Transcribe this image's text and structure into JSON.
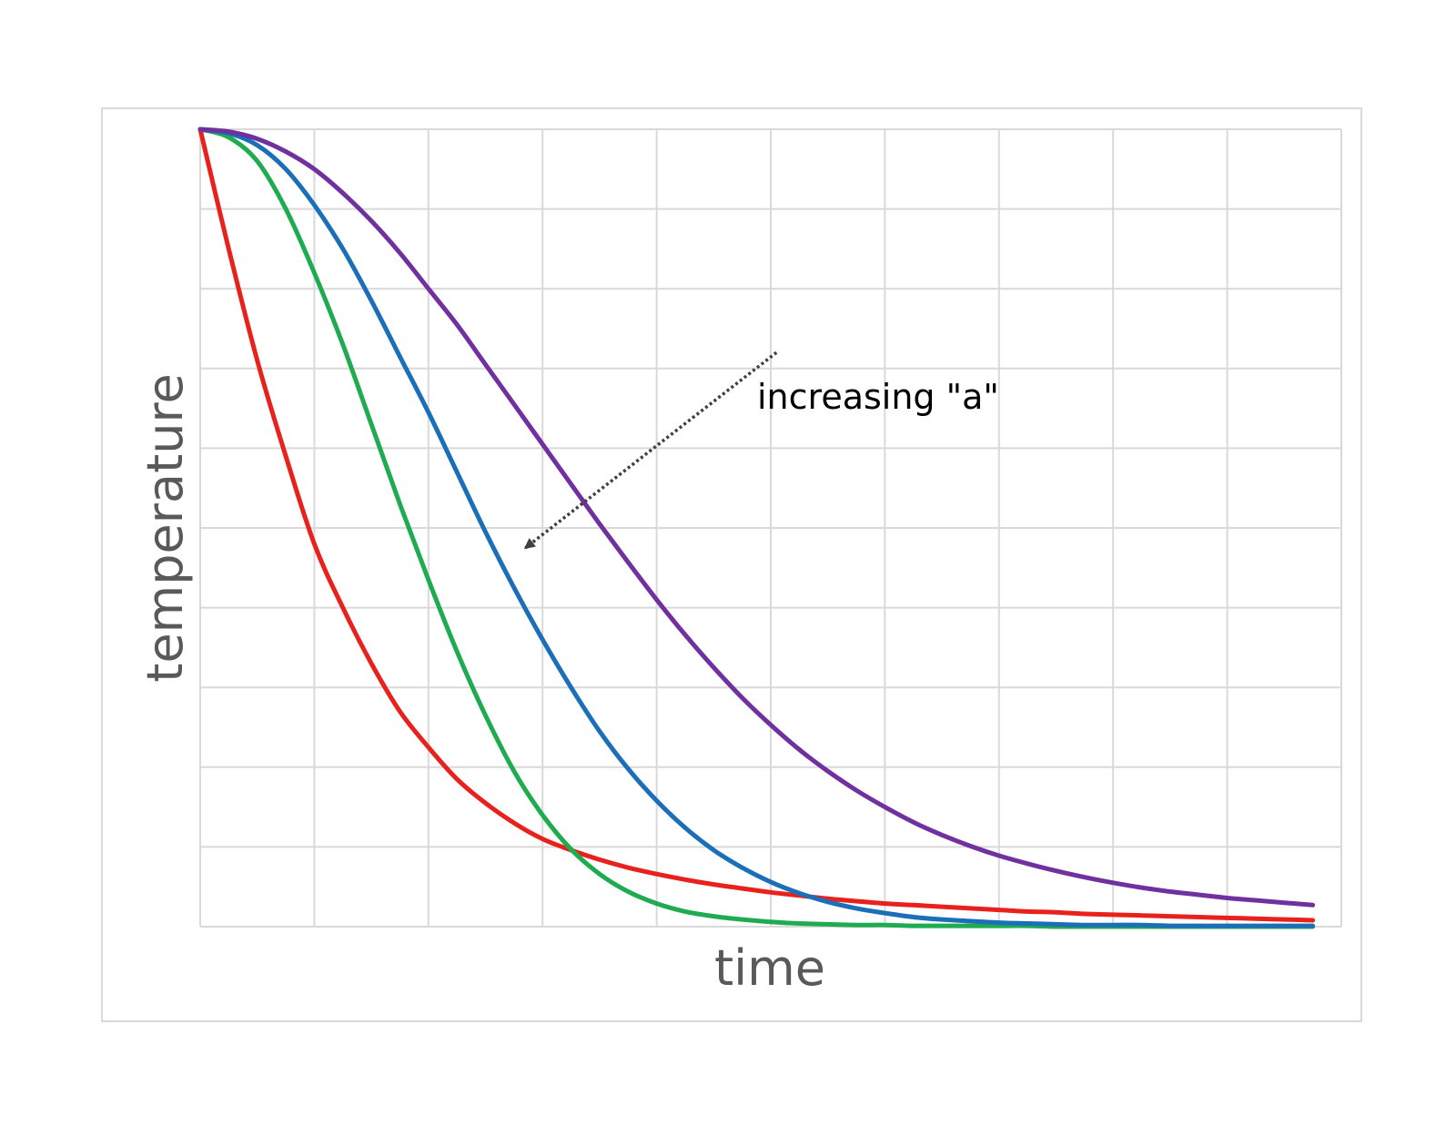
{
  "chart_data": {
    "type": "line",
    "title": "",
    "xlabel": "time",
    "ylabel": "temperature",
    "xlim": [
      0,
      10
    ],
    "ylim": [
      0,
      10
    ],
    "grid": true,
    "x_gridlines": 10,
    "y_gridlines": 10,
    "tick_labels_shown": false,
    "x": [
      0,
      0.25,
      0.5,
      0.75,
      1,
      1.25,
      1.5,
      1.75,
      2,
      2.25,
      2.5,
      2.75,
      3,
      3.25,
      3.5,
      3.75,
      4,
      4.25,
      4.5,
      4.75,
      5,
      5.25,
      5.5,
      5.75,
      6,
      6.25,
      6.5,
      6.75,
      7,
      7.25,
      7.5,
      7.75,
      8,
      8.25,
      8.5,
      8.75,
      9,
      9.25,
      9.5,
      9.75
    ],
    "series": [
      {
        "color": "#e8211d",
        "values": [
          10.0,
          8.5,
          7.1,
          5.9,
          4.8,
          4.0,
          3.3,
          2.7,
          2.25,
          1.85,
          1.55,
          1.3,
          1.1,
          0.96,
          0.84,
          0.74,
          0.66,
          0.59,
          0.53,
          0.48,
          0.43,
          0.39,
          0.35,
          0.32,
          0.29,
          0.27,
          0.25,
          0.23,
          0.21,
          0.19,
          0.18,
          0.16,
          0.15,
          0.14,
          0.13,
          0.12,
          0.11,
          0.1,
          0.09,
          0.08
        ]
      },
      {
        "color": "#1fab4f",
        "values": [
          10.0,
          9.9,
          9.6,
          9.0,
          8.2,
          7.3,
          6.3,
          5.3,
          4.35,
          3.45,
          2.65,
          1.95,
          1.4,
          0.97,
          0.66,
          0.44,
          0.29,
          0.19,
          0.13,
          0.09,
          0.06,
          0.04,
          0.03,
          0.02,
          0.02,
          0.01,
          0.01,
          0.01,
          0.01,
          0.01,
          0.0,
          0.0,
          0.0,
          0.0,
          0.0,
          0.0,
          0.0,
          0.0,
          0.0,
          0.0
        ]
      },
      {
        "color": "#1b6fb8",
        "values": [
          10.0,
          9.95,
          9.8,
          9.5,
          9.05,
          8.5,
          7.85,
          7.15,
          6.45,
          5.7,
          4.95,
          4.25,
          3.6,
          3.0,
          2.45,
          1.98,
          1.58,
          1.24,
          0.96,
          0.74,
          0.56,
          0.42,
          0.31,
          0.23,
          0.17,
          0.12,
          0.09,
          0.07,
          0.05,
          0.04,
          0.03,
          0.02,
          0.02,
          0.02,
          0.01,
          0.01,
          0.01,
          0.01,
          0.01,
          0.01
        ]
      },
      {
        "color": "#7030a0",
        "values": [
          10.0,
          9.97,
          9.88,
          9.72,
          9.5,
          9.2,
          8.85,
          8.45,
          8.0,
          7.55,
          7.05,
          6.55,
          6.05,
          5.55,
          5.05,
          4.57,
          4.1,
          3.66,
          3.25,
          2.87,
          2.53,
          2.22,
          1.95,
          1.71,
          1.5,
          1.31,
          1.15,
          1.01,
          0.89,
          0.79,
          0.7,
          0.62,
          0.55,
          0.49,
          0.44,
          0.4,
          0.36,
          0.33,
          0.3,
          0.27
        ]
      }
    ],
    "annotations": [
      {
        "text": "increasing \"a\""
      }
    ],
    "arrow": {
      "from": [
        5.05,
        7.2
      ],
      "to": [
        2.85,
        4.75
      ],
      "style": "dotted"
    },
    "colors": {
      "grid": "#d9d9d9",
      "axis_title": "#595959",
      "annotation": "#000000"
    }
  }
}
